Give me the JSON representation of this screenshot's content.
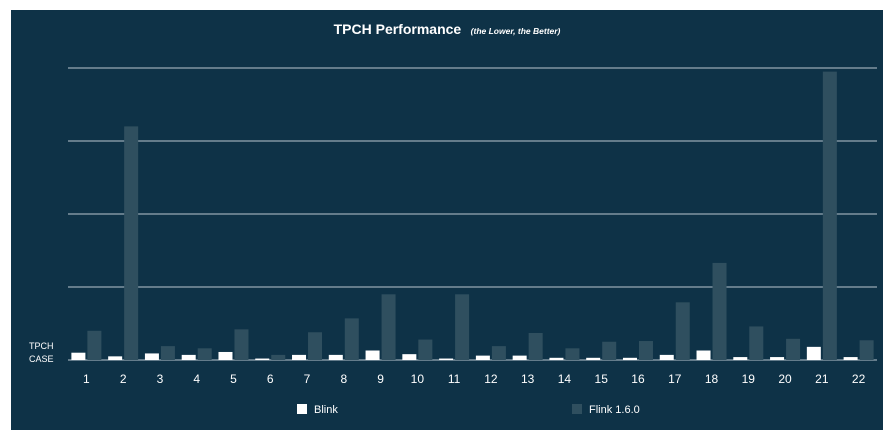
{
  "chart_data": {
    "type": "bar",
    "title": "TPCH Performance",
    "subtitle": "(the Lower, the Better)",
    "xlabel_line1": "TPCH",
    "xlabel_line2": "CASE",
    "ylabel": "",
    "ylim": [
      0,
      4
    ],
    "grid": true,
    "legend_position": "bottom",
    "categories": [
      "1",
      "2",
      "3",
      "4",
      "5",
      "6",
      "7",
      "8",
      "9",
      "10",
      "11",
      "12",
      "13",
      "14",
      "15",
      "16",
      "17",
      "18",
      "19",
      "20",
      "21",
      "22"
    ],
    "series": [
      {
        "name": "Blink",
        "color": "#ffffff",
        "values": [
          0.1,
          0.05,
          0.09,
          0.07,
          0.11,
          0.02,
          0.07,
          0.07,
          0.13,
          0.08,
          0.02,
          0.06,
          0.06,
          0.03,
          0.03,
          0.03,
          0.07,
          0.13,
          0.04,
          0.04,
          0.18,
          0.04
        ]
      },
      {
        "name": "Flink 1.6.0",
        "color": "#2f4f5f",
        "values": [
          0.4,
          3.2,
          0.19,
          0.16,
          0.42,
          0.07,
          0.38,
          0.57,
          0.9,
          0.28,
          0.9,
          0.19,
          0.37,
          0.16,
          0.25,
          0.26,
          0.79,
          1.33,
          0.46,
          0.29,
          3.95,
          0.27
        ]
      }
    ]
  }
}
